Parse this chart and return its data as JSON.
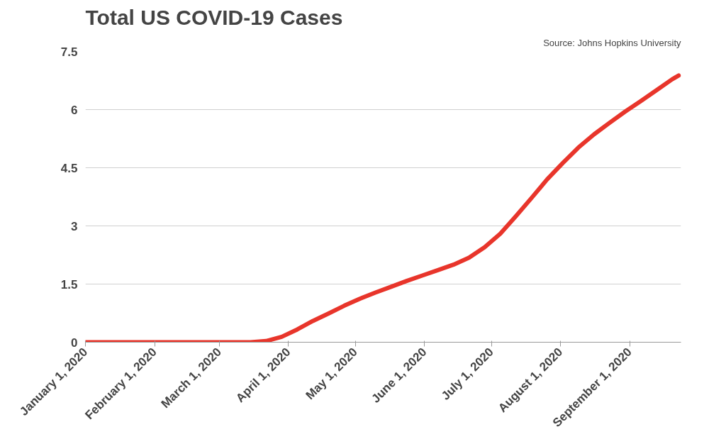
{
  "chart_data": {
    "type": "line",
    "title": "Total US COVID-19 Cases",
    "annotations": [
      "Source: Johns Hopkins University"
    ],
    "x": [
      "2020-01-01",
      "2020-02-01",
      "2020-03-01",
      "2020-03-15",
      "2020-03-22",
      "2020-03-29",
      "2020-04-05",
      "2020-04-12",
      "2020-04-19",
      "2020-04-26",
      "2020-05-03",
      "2020-05-10",
      "2020-05-17",
      "2020-05-24",
      "2020-05-31",
      "2020-06-07",
      "2020-06-14",
      "2020-06-21",
      "2020-06-28",
      "2020-07-05",
      "2020-07-12",
      "2020-07-19",
      "2020-07-26",
      "2020-08-02",
      "2020-08-09",
      "2020-08-16",
      "2020-08-23",
      "2020-08-30",
      "2020-09-06",
      "2020-09-13",
      "2020-09-20",
      "2020-09-23"
    ],
    "series": [
      {
        "color": "#e8352b",
        "values": [
          0,
          0,
          0,
          0,
          0.03,
          0.14,
          0.33,
          0.55,
          0.74,
          0.94,
          1.12,
          1.28,
          1.43,
          1.58,
          1.72,
          1.86,
          2.0,
          2.18,
          2.45,
          2.8,
          3.25,
          3.72,
          4.2,
          4.62,
          5.02,
          5.36,
          5.66,
          5.95,
          6.22,
          6.5,
          6.78,
          6.88
        ]
      }
    ],
    "xlim": [
      "2020-01-01",
      "2020-09-24"
    ],
    "xticks": [
      {
        "value": "2020-01-01",
        "label": "January 1, 2020"
      },
      {
        "value": "2020-02-01",
        "label": "February 1, 2020"
      },
      {
        "value": "2020-03-01",
        "label": "March 1, 2020"
      },
      {
        "value": "2020-04-01",
        "label": "April 1, 2020"
      },
      {
        "value": "2020-05-01",
        "label": "May 1, 2020"
      },
      {
        "value": "2020-06-01",
        "label": "June 1, 2020"
      },
      {
        "value": "2020-07-01",
        "label": "July 1, 2020"
      },
      {
        "value": "2020-08-01",
        "label": "August 1, 2020"
      },
      {
        "value": "2020-09-01",
        "label": "September 1, 2020"
      }
    ],
    "ylim": [
      0,
      7.5
    ],
    "yticks": [
      0,
      1.5,
      3,
      4.5,
      6,
      7.5
    ],
    "grid": "y",
    "marker": "none",
    "line_style": "solid"
  }
}
